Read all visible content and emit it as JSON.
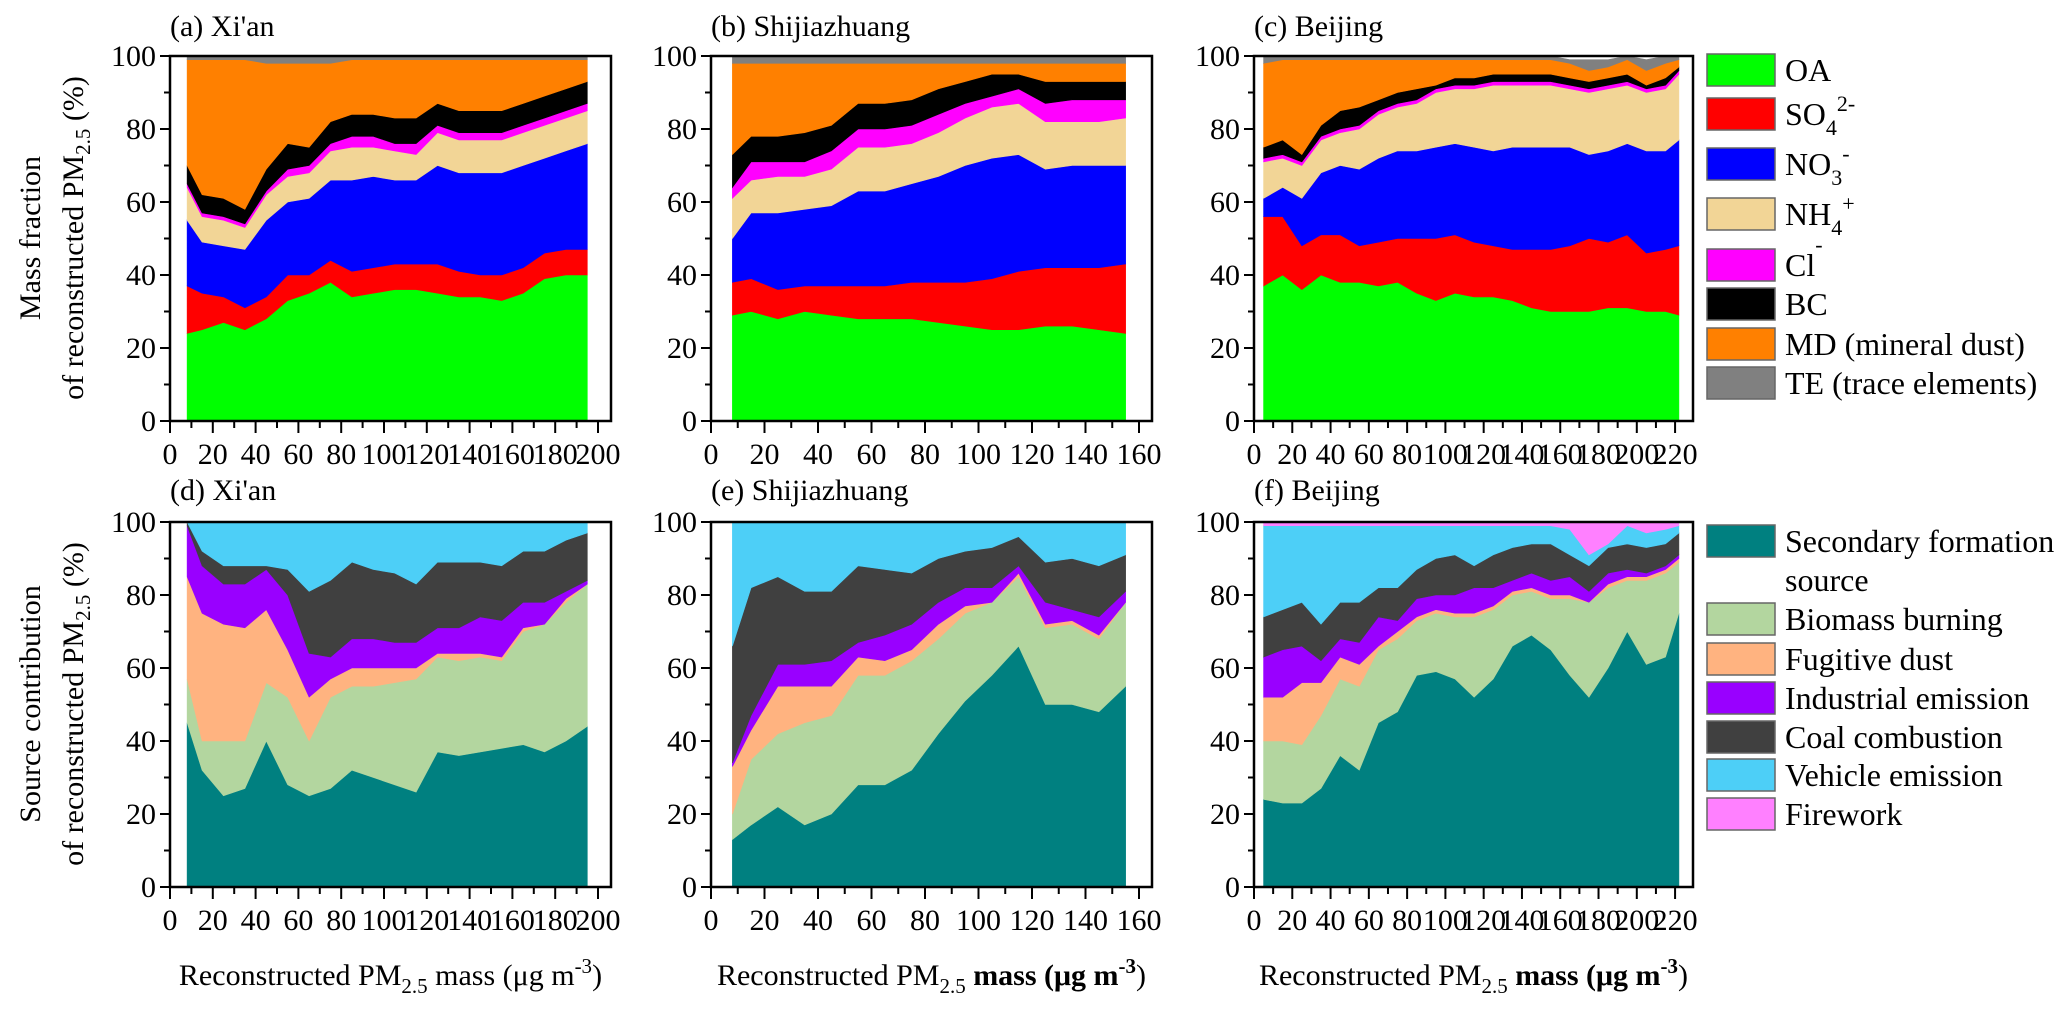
{
  "y_labels": {
    "top": {
      "line1": "Mass fraction",
      "line2": "of reconstructed PM",
      "sub": "2.5",
      "tail": " (%)"
    },
    "bottom": {
      "line1": "Source contribution",
      "line2": "of reconstructed PM",
      "sub": "2.5",
      "tail": " (%)"
    }
  },
  "x_label": {
    "text": "Reconstructed PM",
    "sub": "2.5",
    "mid": " mass (μg m",
    "sup": "-3",
    "tail": ")"
  },
  "legends": {
    "composition": [
      {
        "label": "OA",
        "sub": "",
        "sup": "",
        "color": "#00ff00"
      },
      {
        "label": "SO",
        "sub": "4",
        "sup": "2-",
        "color": "#ff0000"
      },
      {
        "label": "NO",
        "sub": "3",
        "sup": "-",
        "color": "#0000ff"
      },
      {
        "label": "NH",
        "sub": "4",
        "sup": "+",
        "color": "#f2d596"
      },
      {
        "label": "Cl",
        "sub": "",
        "sup": "-",
        "color": "#ff00ff"
      },
      {
        "label": "BC",
        "sub": "",
        "sup": "",
        "color": "#000000"
      },
      {
        "label": "MD (mineral dust)",
        "sub": "",
        "sup": "",
        "color": "#ff8000"
      },
      {
        "label": "TE (trace elements)",
        "sub": "",
        "sup": "",
        "color": "#808080"
      }
    ],
    "source": [
      {
        "label": "Secondary formation",
        "label2": "source",
        "color": "#008080"
      },
      {
        "label": "Biomass burning",
        "color": "#b3d69f"
      },
      {
        "label": "Fugitive dust",
        "color": "#ffb380"
      },
      {
        "label": "Industrial emission",
        "color": "#9900ff"
      },
      {
        "label": "Coal combustion",
        "color": "#404040"
      },
      {
        "label": "Vehicle emission",
        "color": "#4dcff7"
      },
      {
        "label": "Firework",
        "color": "#ff80ff"
      }
    ]
  },
  "chart_data": [
    {
      "type": "area",
      "stacked": true,
      "group": "composition",
      "title": "(a) Xi'an",
      "xlim": [
        0,
        200
      ],
      "xticks": [
        0,
        20,
        40,
        60,
        80,
        100,
        120,
        140,
        160,
        180,
        200
      ],
      "ylim": [
        0,
        100
      ],
      "yticks": [
        0,
        20,
        40,
        60,
        80,
        100
      ],
      "x": [
        8,
        15,
        25,
        35,
        45,
        55,
        65,
        75,
        85,
        95,
        105,
        115,
        125,
        135,
        145,
        155,
        165,
        175,
        185,
        195
      ],
      "series": [
        [
          24,
          25,
          27,
          25,
          28,
          33,
          35,
          38,
          34,
          35,
          36,
          36,
          35,
          34,
          34,
          33,
          35,
          39,
          40,
          40
        ],
        [
          13,
          10,
          7,
          6,
          6,
          7,
          5,
          6,
          7,
          7,
          7,
          7,
          8,
          7,
          6,
          7,
          7,
          7,
          7,
          7
        ],
        [
          18,
          14,
          14,
          16,
          21,
          20,
          21,
          22,
          25,
          25,
          23,
          23,
          27,
          27,
          28,
          28,
          28,
          26,
          27,
          29
        ],
        [
          9,
          7,
          7,
          6,
          7,
          7,
          7,
          8,
          9,
          8,
          8,
          7,
          9,
          9,
          9,
          9,
          9,
          9,
          9,
          9
        ],
        [
          1,
          1,
          1,
          1,
          1,
          2,
          2,
          2,
          3,
          3,
          2,
          3,
          2,
          2,
          2,
          2,
          2,
          2,
          2,
          2
        ],
        [
          5,
          5,
          5,
          4,
          6,
          7,
          5,
          6,
          6,
          6,
          7,
          7,
          6,
          6,
          6,
          6,
          6,
          6,
          6,
          6
        ],
        [
          29,
          37,
          38,
          41,
          29,
          22,
          23,
          16,
          15,
          15,
          16,
          16,
          12,
          14,
          14,
          14,
          12,
          10,
          8,
          6
        ],
        [
          1,
          1,
          1,
          1,
          2,
          2,
          2,
          2,
          1,
          1,
          1,
          1,
          1,
          1,
          1,
          1,
          1,
          1,
          1,
          1
        ]
      ]
    },
    {
      "type": "area",
      "stacked": true,
      "group": "composition",
      "title": "(b) Shijiazhuang",
      "xlim": [
        0,
        160
      ],
      "xticks": [
        0,
        20,
        40,
        60,
        80,
        100,
        120,
        140,
        160
      ],
      "ylim": [
        0,
        100
      ],
      "yticks": [
        0,
        20,
        40,
        60,
        80,
        100
      ],
      "x": [
        8,
        15,
        25,
        35,
        45,
        55,
        65,
        75,
        85,
        95,
        105,
        115,
        125,
        135,
        145,
        155
      ],
      "series": [
        [
          29,
          30,
          28,
          30,
          29,
          28,
          28,
          28,
          27,
          26,
          25,
          25,
          26,
          26,
          25,
          24
        ],
        [
          9,
          9,
          8,
          7,
          8,
          9,
          9,
          10,
          11,
          12,
          14,
          16,
          16,
          16,
          17,
          19
        ],
        [
          12,
          18,
          21,
          21,
          22,
          26,
          26,
          27,
          29,
          32,
          33,
          32,
          27,
          28,
          28,
          27
        ],
        [
          11,
          9,
          10,
          9,
          10,
          12,
          12,
          11,
          12,
          13,
          14,
          14,
          13,
          12,
          12,
          13
        ],
        [
          3,
          5,
          4,
          4,
          5,
          5,
          5,
          5,
          5,
          4,
          3,
          4,
          5,
          6,
          6,
          5
        ],
        [
          9,
          7,
          7,
          8,
          7,
          7,
          7,
          7,
          7,
          6,
          6,
          4,
          6,
          5,
          5,
          5
        ],
        [
          25,
          20,
          20,
          19,
          17,
          11,
          11,
          10,
          7,
          5,
          3,
          3,
          5,
          5,
          5,
          5
        ],
        [
          2,
          2,
          2,
          2,
          2,
          2,
          2,
          2,
          2,
          2,
          2,
          2,
          2,
          2,
          2,
          2
        ]
      ]
    },
    {
      "type": "area",
      "stacked": true,
      "group": "composition",
      "title": "(c) Beijing",
      "xlim": [
        0,
        220
      ],
      "xticks": [
        0,
        20,
        40,
        60,
        80,
        100,
        120,
        140,
        160,
        180,
        200,
        220
      ],
      "ylim": [
        0,
        100
      ],
      "yticks": [
        0,
        20,
        40,
        60,
        80,
        100
      ],
      "x": [
        5,
        15,
        25,
        35,
        45,
        55,
        65,
        75,
        85,
        95,
        105,
        115,
        125,
        135,
        145,
        155,
        165,
        175,
        185,
        195,
        205,
        215,
        222
      ],
      "series": [
        [
          37,
          40,
          36,
          40,
          38,
          38,
          37,
          38,
          35,
          33,
          35,
          34,
          34,
          33,
          31,
          30,
          30,
          30,
          31,
          31,
          30,
          30,
          29
        ],
        [
          19,
          16,
          12,
          11,
          13,
          10,
          12,
          12,
          15,
          17,
          16,
          15,
          14,
          14,
          16,
          17,
          18,
          20,
          18,
          20,
          16,
          17,
          19
        ],
        [
          5,
          8,
          13,
          17,
          19,
          21,
          23,
          24,
          24,
          25,
          25,
          26,
          26,
          28,
          28,
          28,
          27,
          23,
          25,
          25,
          28,
          27,
          29
        ],
        [
          10,
          8,
          9,
          9,
          9,
          11,
          12,
          12,
          13,
          15,
          15,
          16,
          18,
          17,
          17,
          17,
          16,
          17,
          17,
          16,
          16,
          17,
          18
        ],
        [
          1,
          1,
          1,
          1,
          1,
          1,
          1,
          1,
          1,
          1,
          1,
          1,
          1,
          1,
          1,
          1,
          1,
          1,
          1,
          1,
          1,
          1,
          1
        ],
        [
          3,
          4,
          2,
          3,
          5,
          5,
          3,
          3,
          3,
          1,
          2,
          2,
          2,
          2,
          2,
          2,
          2,
          2,
          2,
          2,
          1,
          2,
          1
        ],
        [
          23,
          22,
          26,
          18,
          14,
          13,
          11,
          9,
          8,
          7,
          5,
          5,
          4,
          4,
          4,
          4,
          4,
          3,
          3,
          4,
          4,
          4,
          2
        ],
        [
          2,
          1,
          1,
          1,
          1,
          1,
          1,
          1,
          1,
          1,
          1,
          1,
          1,
          1,
          1,
          1,
          1,
          3,
          2,
          1,
          3,
          2,
          1
        ]
      ]
    },
    {
      "type": "area",
      "stacked": true,
      "group": "source",
      "title": "(d) Xi'an",
      "xlim": [
        0,
        200
      ],
      "xticks": [
        0,
        20,
        40,
        60,
        80,
        100,
        120,
        140,
        160,
        180,
        200
      ],
      "ylim": [
        0,
        100
      ],
      "yticks": [
        0,
        20,
        40,
        60,
        80,
        100
      ],
      "x": [
        8,
        15,
        25,
        35,
        45,
        55,
        65,
        75,
        85,
        95,
        105,
        115,
        125,
        135,
        145,
        155,
        165,
        175,
        185,
        195
      ],
      "series": [
        [
          45,
          32,
          25,
          27,
          40,
          28,
          25,
          27,
          32,
          30,
          28,
          26,
          37,
          36,
          37,
          38,
          39,
          37,
          40,
          44
        ],
        [
          12,
          8,
          15,
          13,
          16,
          24,
          15,
          25,
          23,
          25,
          28,
          31,
          26,
          26,
          26,
          24,
          31,
          35,
          38,
          39
        ],
        [
          28,
          35,
          32,
          31,
          20,
          13,
          12,
          5,
          5,
          5,
          4,
          3,
          1,
          2,
          1,
          1,
          1,
          0,
          1,
          0
        ],
        [
          14,
          13,
          11,
          12,
          11,
          15,
          12,
          6,
          8,
          8,
          7,
          7,
          7,
          7,
          10,
          10,
          7,
          6,
          2,
          1
        ],
        [
          1,
          4,
          5,
          5,
          1,
          7,
          17,
          21,
          21,
          19,
          19,
          16,
          18,
          18,
          15,
          15,
          14,
          14,
          14,
          13
        ],
        [
          0,
          8,
          12,
          12,
          12,
          13,
          19,
          16,
          11,
          13,
          14,
          17,
          11,
          11,
          11,
          12,
          8,
          8,
          5,
          3
        ],
        [
          0,
          0,
          0,
          0,
          0,
          0,
          0,
          0,
          0,
          0,
          0,
          0,
          0,
          0,
          0,
          0,
          0,
          0,
          0,
          0
        ]
      ]
    },
    {
      "type": "area",
      "stacked": true,
      "group": "source",
      "title": "(e) Shijiazhuang",
      "xlim": [
        0,
        160
      ],
      "xticks": [
        0,
        20,
        40,
        60,
        80,
        100,
        120,
        140,
        160
      ],
      "ylim": [
        0,
        100
      ],
      "yticks": [
        0,
        20,
        40,
        60,
        80,
        100
      ],
      "x": [
        8,
        15,
        25,
        35,
        45,
        55,
        65,
        75,
        85,
        95,
        105,
        115,
        125,
        135,
        145,
        155
      ],
      "series": [
        [
          13,
          17,
          22,
          17,
          20,
          28,
          28,
          32,
          42,
          51,
          58,
          66,
          50,
          50,
          48,
          55
        ],
        [
          7,
          18,
          20,
          28,
          27,
          30,
          30,
          30,
          26,
          24,
          20,
          19,
          21,
          22,
          20,
          23
        ],
        [
          13,
          8,
          13,
          10,
          8,
          5,
          4,
          3,
          4,
          2,
          0,
          1,
          1,
          1,
          1,
          0
        ],
        [
          1,
          4,
          6,
          6,
          7,
          4,
          7,
          7,
          6,
          5,
          4,
          2,
          6,
          3,
          5,
          3
        ],
        [
          32,
          35,
          24,
          20,
          19,
          21,
          18,
          14,
          12,
          10,
          11,
          8,
          11,
          14,
          14,
          10
        ],
        [
          34,
          18,
          15,
          19,
          19,
          12,
          13,
          14,
          10,
          8,
          7,
          4,
          11,
          10,
          12,
          9
        ],
        [
          0,
          0,
          0,
          0,
          0,
          0,
          0,
          0,
          0,
          0,
          0,
          0,
          0,
          0,
          0,
          0
        ]
      ]
    },
    {
      "type": "area",
      "stacked": true,
      "group": "source",
      "title": "(f) Beijing",
      "xlim": [
        0,
        220
      ],
      "xticks": [
        0,
        20,
        40,
        60,
        80,
        100,
        120,
        140,
        160,
        180,
        200,
        220
      ],
      "ylim": [
        0,
        100
      ],
      "yticks": [
        0,
        20,
        40,
        60,
        80,
        100
      ],
      "x": [
        5,
        15,
        25,
        35,
        45,
        55,
        65,
        75,
        85,
        95,
        105,
        115,
        125,
        135,
        145,
        155,
        165,
        175,
        185,
        195,
        205,
        215,
        222
      ],
      "series": [
        [
          24,
          23,
          23,
          27,
          36,
          32,
          45,
          48,
          58,
          59,
          57,
          52,
          57,
          66,
          69,
          65,
          58,
          52,
          60,
          70,
          61,
          63,
          75
        ],
        [
          16,
          17,
          16,
          20,
          21,
          23,
          20,
          20,
          15,
          16,
          17,
          22,
          19,
          14,
          12,
          14,
          21,
          26,
          22,
          14,
          23,
          23,
          14
        ],
        [
          12,
          12,
          17,
          9,
          6,
          6,
          1,
          2,
          1,
          1,
          1,
          1,
          1,
          1,
          1,
          1,
          1,
          0,
          1,
          1,
          1,
          1,
          1
        ],
        [
          11,
          13,
          10,
          6,
          5,
          6,
          8,
          3,
          5,
          4,
          5,
          7,
          5,
          3,
          4,
          4,
          5,
          3,
          3,
          2,
          1,
          1,
          1
        ],
        [
          11,
          11,
          12,
          10,
          10,
          11,
          8,
          9,
          8,
          10,
          11,
          6,
          9,
          9,
          8,
          10,
          6,
          7,
          7,
          7,
          7,
          6,
          6
        ],
        [
          25,
          23,
          21,
          27,
          21,
          21,
          17,
          17,
          12,
          9,
          8,
          11,
          8,
          6,
          5,
          5,
          7,
          3,
          1,
          5,
          4,
          4,
          2
        ],
        [
          1,
          1,
          1,
          1,
          1,
          1,
          1,
          1,
          1,
          1,
          1,
          1,
          1,
          1,
          1,
          1,
          2,
          9,
          6,
          1,
          3,
          2,
          1
        ]
      ]
    }
  ]
}
